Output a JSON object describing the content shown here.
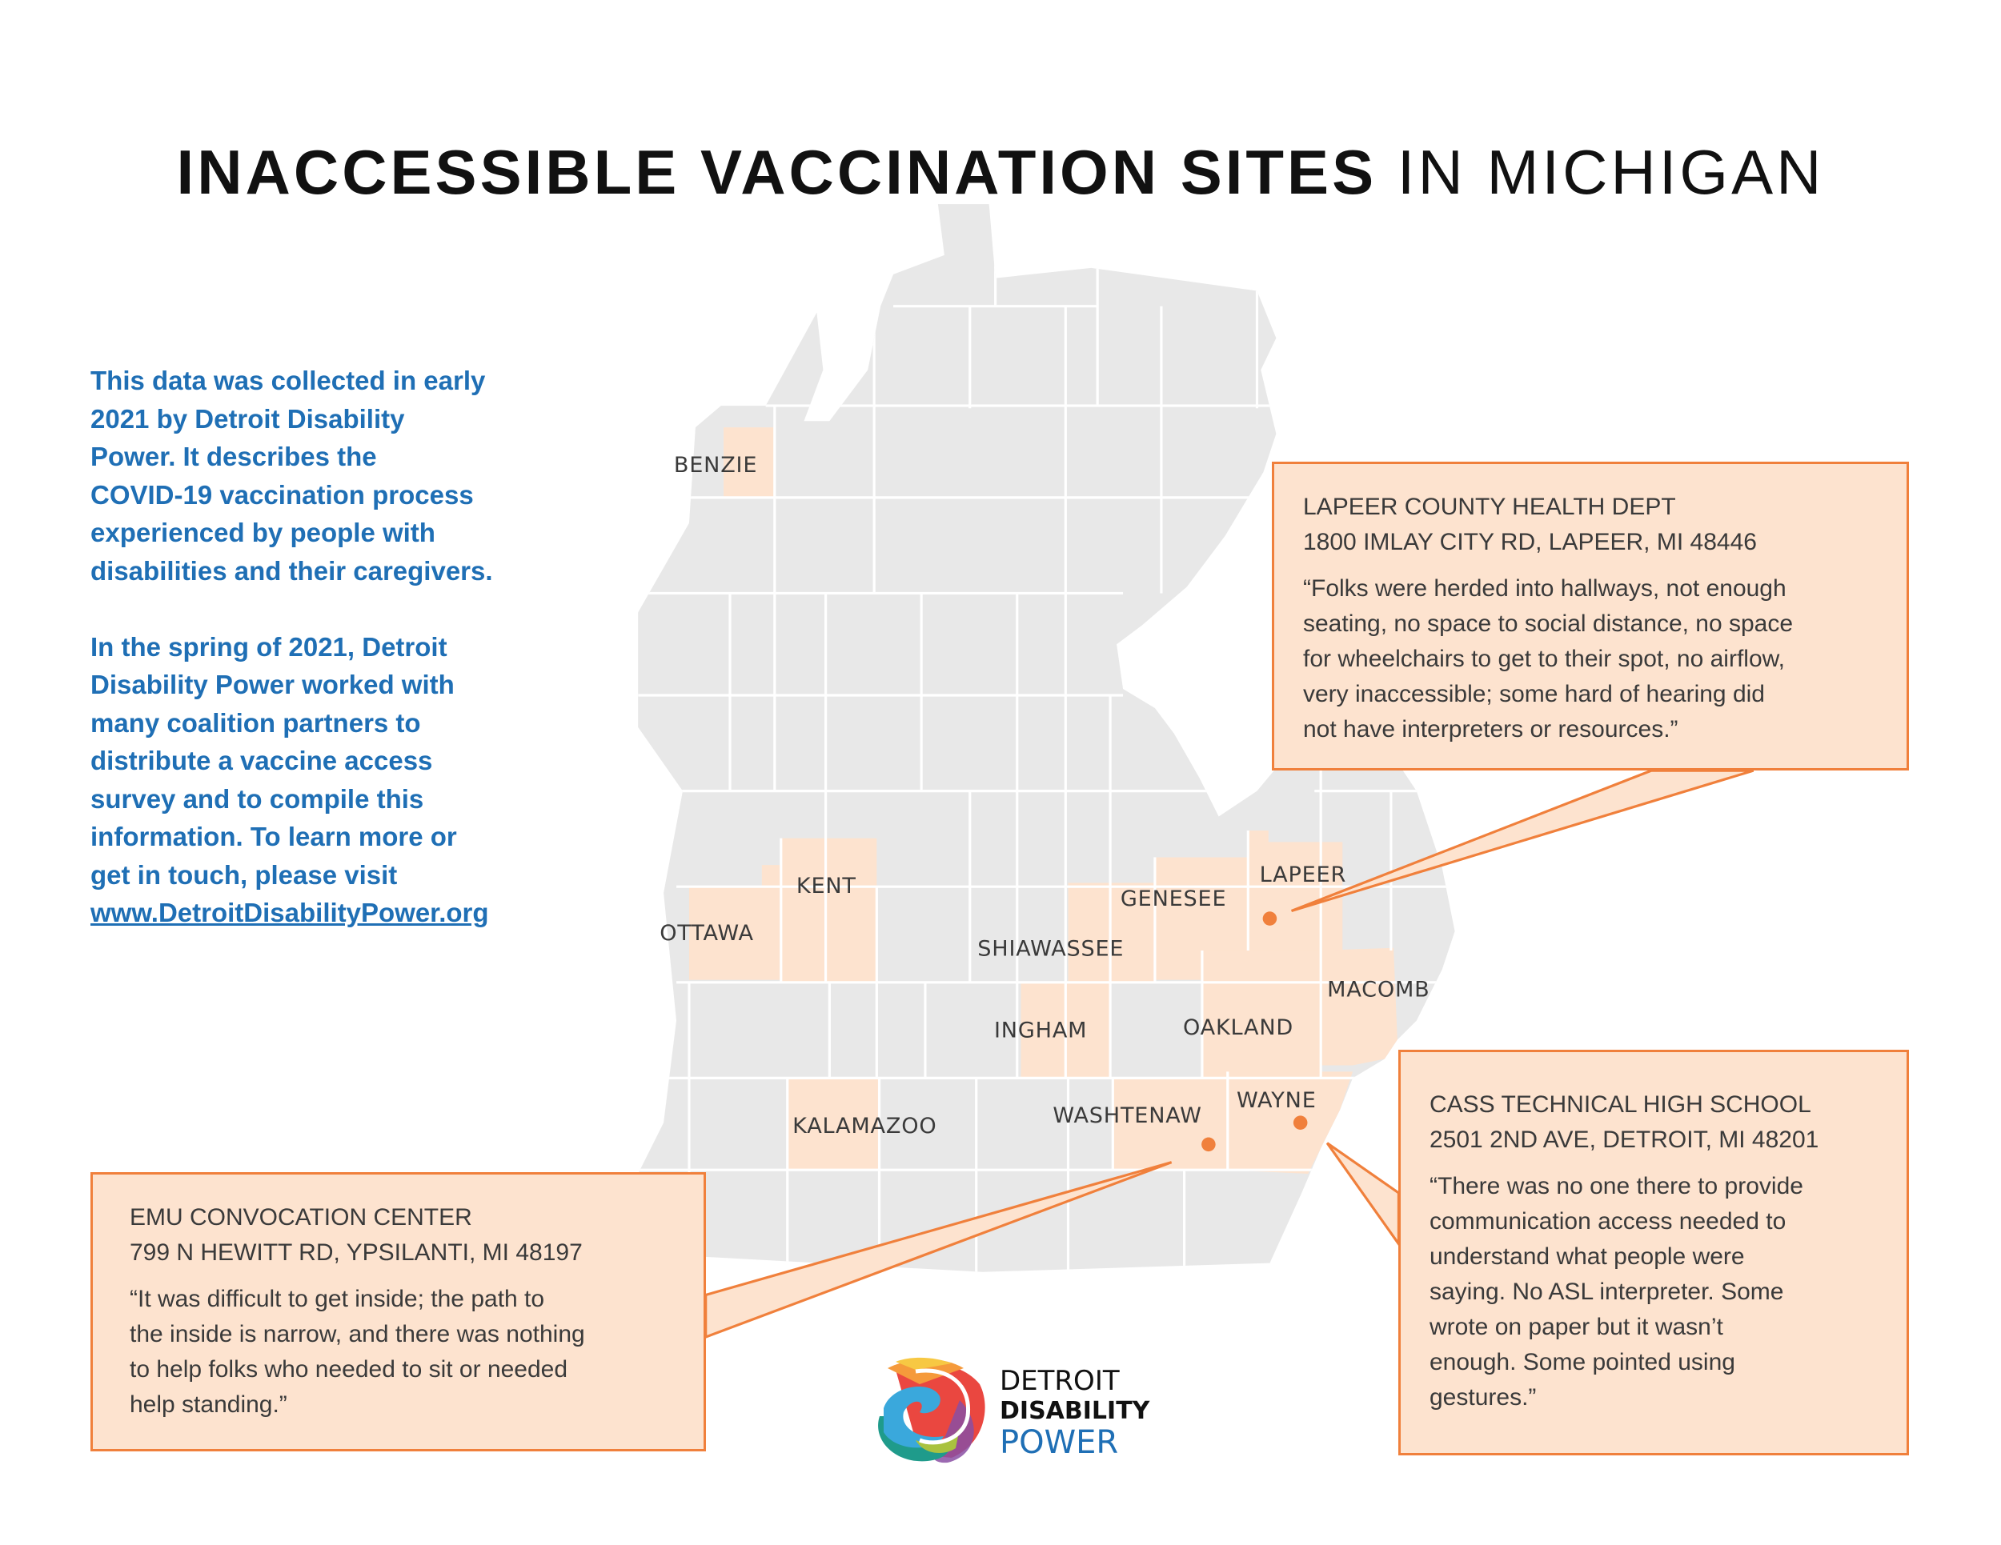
{
  "title": {
    "bold": "INACCESSIBLE VACCINATION SITES",
    "light": "IN MICHIGAN"
  },
  "intro": {
    "paragraph1": [
      "This data was collected in early",
      "2021 by Detroit Disability",
      "Power. It describes the",
      "COVID-19 vaccination process",
      "experienced by people with",
      "disabilities and their caregivers."
    ],
    "paragraph2": [
      "In the spring of 2021, Detroit",
      "Disability Power worked with",
      "many coalition partners to",
      "distribute a vaccine access",
      "survey and to compile this",
      "information. To learn more or",
      "get in touch, please visit"
    ],
    "link": "www.DetroitDisabilityPower.org"
  },
  "counties": {
    "benzie": "BENZIE",
    "ottawa": "OTTAWA",
    "kent": "KENT",
    "kalamazoo": "KALAMAZOO",
    "shiawassee": "SHIAWASSEE",
    "genesee": "GENESEE",
    "lapeer": "LAPEER",
    "ingham": "INGHAM",
    "oakland": "OAKLAND",
    "macomb": "MACOMB",
    "washtenaw": "WASHTENAW",
    "wayne": "WAYNE"
  },
  "callouts": {
    "lapeer": {
      "name": "LAPEER COUNTY HEALTH DEPT",
      "address": "1800 IMLAY CITY RD, LAPEER, MI 48446",
      "quote": [
        "“Folks were herded into hallways, not enough",
        "seating, no space to social distance, no space",
        "for wheelchairs to get to their spot, no airflow,",
        "very inaccessible; some hard of hearing did",
        "not have interpreters or resources.”"
      ]
    },
    "emu": {
      "name": "EMU CONVOCATION CENTER",
      "address": "799 N HEWITT RD, YPSILANTI, MI 48197",
      "quote": [
        "“It was difficult to get inside; the path to",
        "the inside is narrow, and there was nothing",
        "to help folks who needed to sit or needed",
        "help standing.”"
      ]
    },
    "cass": {
      "name": "CASS TECHNICAL HIGH SCHOOL",
      "address": "2501 2ND AVE, DETROIT, MI 48201",
      "quote": [
        "“There was no one there to provide",
        "communication access needed to",
        "understand what people were",
        "saying. No ASL interpreter. Some",
        "wrote on paper but it wasn’t",
        "enough. Some pointed using",
        "gestures.”"
      ]
    }
  },
  "logo": {
    "line1": "DETROIT",
    "line2": "DISABILITY",
    "line3": "POWER"
  },
  "colors": {
    "accent_orange": "#f0803c",
    "highlight_fill": "#fde3cf",
    "map_gray": "#e8e8e8",
    "text_blue": "#1f6fb5"
  }
}
